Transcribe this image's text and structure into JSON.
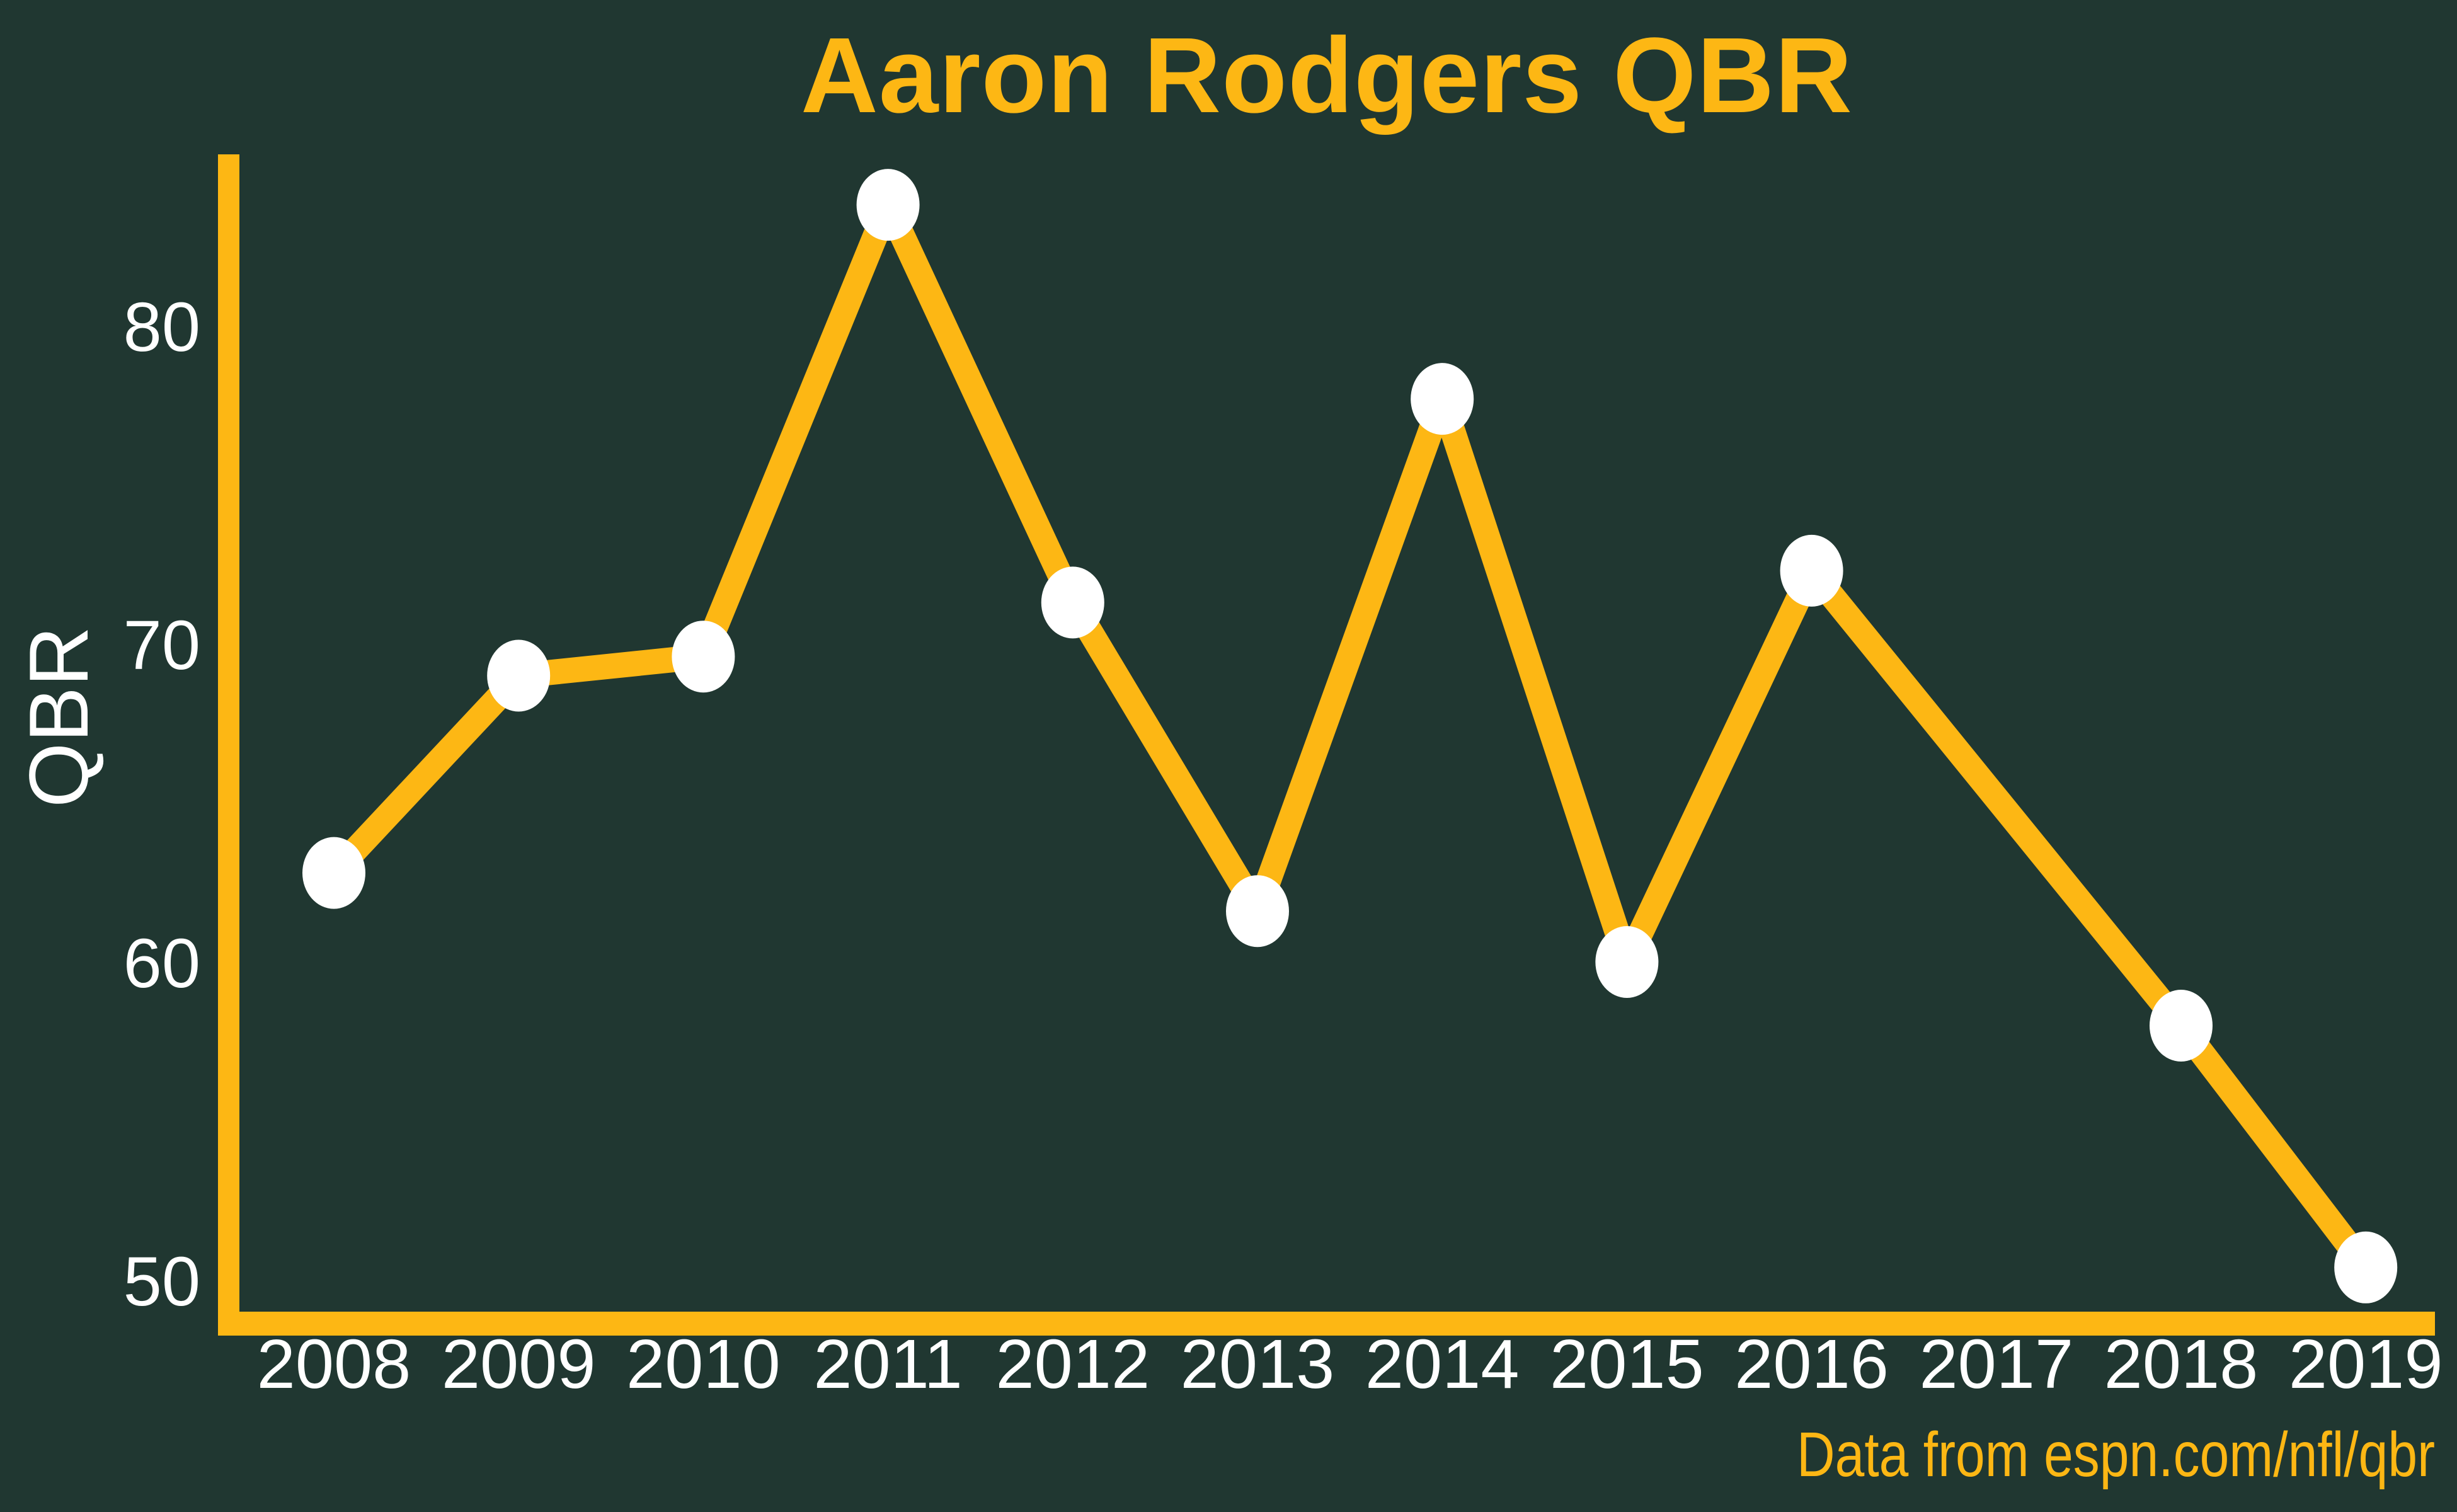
{
  "title": "Aaron Rodgers QBR",
  "source_note": "Data from espn.com/nfl/qbr",
  "colors": {
    "background": "#203731",
    "gold": "#FDB714",
    "white": "#FFFFFF"
  },
  "chart_data": {
    "type": "line",
    "title": "Aaron Rodgers QBR",
    "xlabel": "",
    "ylabel": "QBR",
    "categories": [
      "2008",
      "2009",
      "2010",
      "2011",
      "2012",
      "2013",
      "2014",
      "2015",
      "2016",
      "2017",
      "2018",
      "2019"
    ],
    "series": [
      {
        "name": "QBR",
        "values": [
          62.8,
          69.0,
          69.6,
          83.8,
          71.3,
          61.6,
          77.7,
          60.0,
          72.3,
          null,
          58.0,
          50.4
        ]
      }
    ],
    "y_ticks": [
      50,
      60,
      70,
      80
    ],
    "ylim": [
      48.3,
      85.4
    ],
    "grid": false,
    "legend": false,
    "line_color": "#FDB714",
    "marker_color": "#FFFFFF",
    "note": "2017 season has no plotted point; line connects 2016 directly to 2018",
    "source": "Data from espn.com/nfl/qbr"
  }
}
